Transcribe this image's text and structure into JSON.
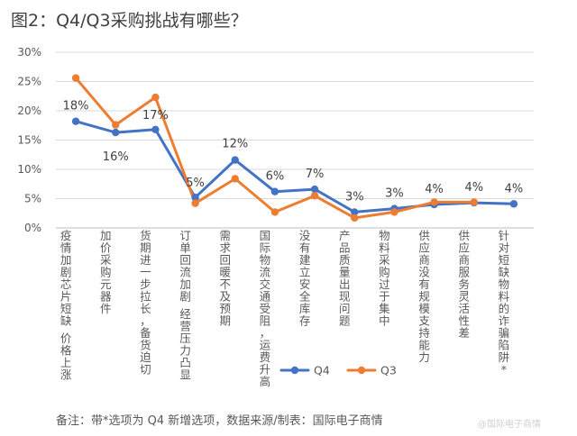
{
  "title": "图2：Q4/Q3采购挑战有哪些？",
  "footnote": "备注：带*选项为 Q4 新增选项，数据来源/制表：国际电子商情",
  "watermark": "@国际电子商情",
  "chart_data": {
    "type": "line",
    "categories": [
      "疫情加剧芯片短缺 价格上涨",
      "加价采购元器件",
      "货期进一步拉长，备货迫切",
      "订单回流加剧 经营压力凸显",
      "需求回暖不及预期",
      "国际物流交通受阻，运费升高",
      "没有建立安全库存",
      "产品质量出现问题",
      "物料采购过于集中",
      "供应商没有规模支持能力",
      "供应商服务灵活性差",
      "针对短缺物料的诈骗陷阱*"
    ],
    "series": [
      {
        "name": "Q4",
        "color": "#4472C4",
        "values": [
          18.2,
          16.3,
          16.8,
          5.2,
          11.6,
          6.2,
          6.6,
          2.7,
          3.3,
          4.0,
          4.3,
          4.1
        ]
      },
      {
        "name": "Q3",
        "color": "#ED7D31",
        "values": [
          25.6,
          17.6,
          22.3,
          4.2,
          8.4,
          2.7,
          5.5,
          1.7,
          2.7,
          4.4,
          4.4,
          null
        ]
      }
    ],
    "data_labels": [
      "18%",
      "16%",
      "17%",
      "5%",
      "12%",
      "6%",
      "7%",
      "3%",
      "3%",
      "4%",
      "4%",
      "4%"
    ],
    "yticks": [
      "0%",
      "5%",
      "10%",
      "15%",
      "20%",
      "25%",
      "30%"
    ],
    "ylim": [
      0,
      30
    ],
    "grid": true,
    "legend_position": "bottom"
  }
}
